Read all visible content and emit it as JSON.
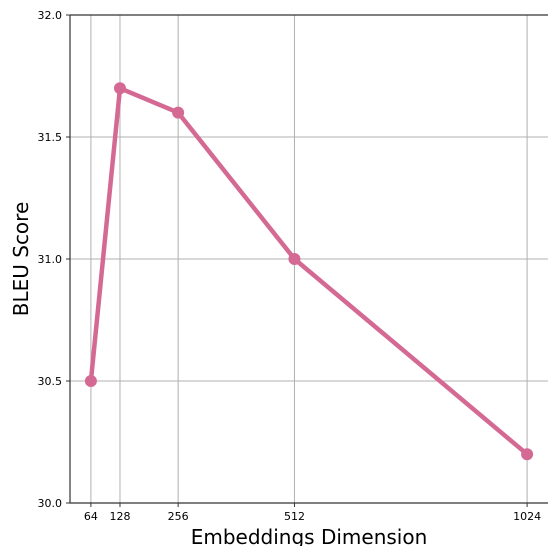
{
  "chart_data": {
    "type": "line",
    "title": "",
    "xlabel": "Embeddings Dimension",
    "ylabel": "BLEU Score",
    "x_ticks": [
      64,
      128,
      256,
      512,
      1024
    ],
    "x_tick_labels": [
      "64",
      "128",
      "256",
      "512",
      "1024"
    ],
    "y_ticks": [
      30.0,
      30.5,
      31.0,
      31.5,
      32.0
    ],
    "y_tick_labels": [
      "30.0",
      "30.5",
      "31.0",
      "31.5",
      "32.0"
    ],
    "xlim": [
      18,
      1070
    ],
    "ylim": [
      30.0,
      32.0
    ],
    "grid": true,
    "series": [
      {
        "color": "#d46a93",
        "x": [
          64,
          128,
          256,
          512,
          1024
        ],
        "y": [
          30.5,
          31.7,
          31.6,
          31.0,
          30.2
        ]
      }
    ]
  }
}
